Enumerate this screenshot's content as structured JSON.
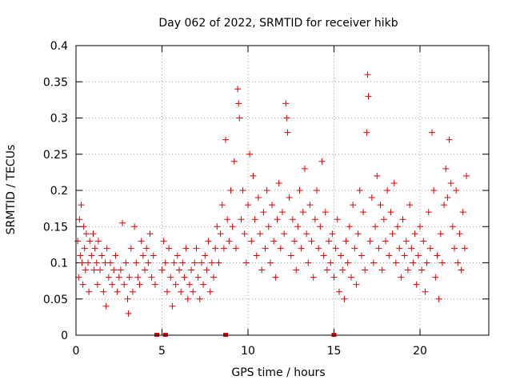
{
  "chart_data": {
    "type": "scatter",
    "title": "Day 062 of 2022, SRMTID for receiver hikb",
    "xlabel": "GPS time / hours",
    "ylabel": "SRMTID / TECUs",
    "xlim": [
      0,
      24
    ],
    "ylim": [
      0,
      0.4
    ],
    "xticks": [
      0,
      5,
      10,
      15,
      20
    ],
    "yticks": [
      0,
      0.05,
      0.1,
      0.15,
      0.2,
      0.25,
      0.3,
      0.35,
      0.4
    ],
    "xtick_labels": [
      "0",
      "5",
      "10",
      "15",
      "20"
    ],
    "ytick_labels": [
      "0",
      "0.05",
      "0.1",
      "0.15",
      "0.2",
      "0.25",
      "0.3",
      "0.35",
      "0.4"
    ],
    "grid": true,
    "marker": "+",
    "color": "#e00000",
    "series": [
      {
        "points": [
          [
            0.1,
            0.13
          ],
          [
            0.15,
            0.08
          ],
          [
            0.2,
            0.16
          ],
          [
            0.25,
            0.11
          ],
          [
            0.3,
            0.18
          ],
          [
            0.35,
            0.1
          ],
          [
            0.4,
            0.07
          ],
          [
            0.45,
            0.15
          ],
          [
            0.5,
            0.12
          ],
          [
            0.55,
            0.09
          ],
          [
            0.6,
            0.14
          ],
          [
            0.7,
            0.1
          ],
          [
            0.75,
            0.06
          ],
          [
            0.8,
            0.13
          ],
          [
            0.9,
            0.11
          ],
          [
            1.0,
            0.14
          ],
          [
            1.05,
            0.09
          ],
          [
            1.1,
            0.12
          ],
          [
            1.2,
            0.1
          ],
          [
            1.25,
            0.07
          ],
          [
            1.3,
            0.13
          ],
          [
            1.4,
            0.09
          ],
          [
            1.5,
            0.11
          ],
          [
            1.6,
            0.06
          ],
          [
            1.7,
            0.1
          ],
          [
            1.75,
            0.04
          ],
          [
            1.8,
            0.12
          ],
          [
            1.9,
            0.08
          ],
          [
            2.0,
            0.1
          ],
          [
            2.1,
            0.07
          ],
          [
            2.2,
            0.09
          ],
          [
            2.3,
            0.11
          ],
          [
            2.4,
            0.06
          ],
          [
            2.5,
            0.08
          ],
          [
            2.6,
            0.09
          ],
          [
            2.7,
            0.155
          ],
          [
            2.8,
            0.07
          ],
          [
            2.9,
            0.1
          ],
          [
            3.0,
            0.05
          ],
          [
            3.05,
            0.03
          ],
          [
            3.1,
            0.08
          ],
          [
            3.2,
            0.12
          ],
          [
            3.3,
            0.06
          ],
          [
            3.4,
            0.15
          ],
          [
            3.5,
            0.1
          ],
          [
            3.6,
            0.08
          ],
          [
            3.7,
            0.07
          ],
          [
            3.8,
            0.13
          ],
          [
            3.9,
            0.11
          ],
          [
            4.0,
            0.09
          ],
          [
            4.1,
            0.12
          ],
          [
            4.2,
            0.1
          ],
          [
            4.3,
            0.14
          ],
          [
            4.4,
            0.08
          ],
          [
            4.5,
            0.11
          ],
          [
            4.6,
            0.07
          ],
          [
            5.0,
            0.09
          ],
          [
            5.1,
            0.13
          ],
          [
            5.2,
            0.1
          ],
          [
            5.3,
            0.06
          ],
          [
            5.4,
            0.12
          ],
          [
            5.5,
            0.08
          ],
          [
            5.6,
            0.04
          ],
          [
            5.7,
            0.1
          ],
          [
            5.8,
            0.07
          ],
          [
            5.9,
            0.11
          ],
          [
            6.0,
            0.09
          ],
          [
            6.1,
            0.06
          ],
          [
            6.2,
            0.1
          ],
          [
            6.3,
            0.08
          ],
          [
            6.4,
            0.12
          ],
          [
            6.5,
            0.05
          ],
          [
            6.6,
            0.07
          ],
          [
            6.7,
            0.09
          ],
          [
            6.8,
            0.06
          ],
          [
            6.9,
            0.1
          ],
          [
            7.0,
            0.12
          ],
          [
            7.1,
            0.08
          ],
          [
            7.2,
            0.05
          ],
          [
            7.3,
            0.1
          ],
          [
            7.4,
            0.07
          ],
          [
            7.5,
            0.11
          ],
          [
            7.6,
            0.09
          ],
          [
            7.7,
            0.13
          ],
          [
            7.8,
            0.06
          ],
          [
            7.9,
            0.1
          ],
          [
            8.0,
            0.08
          ],
          [
            8.1,
            0.12
          ],
          [
            8.2,
            0.15
          ],
          [
            8.3,
            0.1
          ],
          [
            8.4,
            0.14
          ],
          [
            8.5,
            0.18
          ],
          [
            8.6,
            0.12
          ],
          [
            8.7,
            0.27
          ],
          [
            8.8,
            0.16
          ],
          [
            8.9,
            0.13
          ],
          [
            9.0,
            0.2
          ],
          [
            9.1,
            0.15
          ],
          [
            9.2,
            0.24
          ],
          [
            9.3,
            0.12
          ],
          [
            9.4,
            0.34
          ],
          [
            9.45,
            0.32
          ],
          [
            9.5,
            0.3
          ],
          [
            9.6,
            0.16
          ],
          [
            9.7,
            0.2
          ],
          [
            9.8,
            0.14
          ],
          [
            9.9,
            0.1
          ],
          [
            10.0,
            0.18
          ],
          [
            10.1,
            0.25
          ],
          [
            10.2,
            0.13
          ],
          [
            10.3,
            0.22
          ],
          [
            10.4,
            0.16
          ],
          [
            10.5,
            0.11
          ],
          [
            10.6,
            0.19
          ],
          [
            10.7,
            0.14
          ],
          [
            10.8,
            0.09
          ],
          [
            10.9,
            0.17
          ],
          [
            11.0,
            0.12
          ],
          [
            11.1,
            0.2
          ],
          [
            11.2,
            0.15
          ],
          [
            11.3,
            0.1
          ],
          [
            11.4,
            0.18
          ],
          [
            11.5,
            0.13
          ],
          [
            11.6,
            0.08
          ],
          [
            11.7,
            0.16
          ],
          [
            11.8,
            0.21
          ],
          [
            11.9,
            0.12
          ],
          [
            12.0,
            0.17
          ],
          [
            12.1,
            0.14
          ],
          [
            12.2,
            0.32
          ],
          [
            12.25,
            0.3
          ],
          [
            12.3,
            0.28
          ],
          [
            12.4,
            0.19
          ],
          [
            12.5,
            0.11
          ],
          [
            12.6,
            0.16
          ],
          [
            12.7,
            0.13
          ],
          [
            12.8,
            0.09
          ],
          [
            12.9,
            0.15
          ],
          [
            13.0,
            0.2
          ],
          [
            13.1,
            0.12
          ],
          [
            13.2,
            0.17
          ],
          [
            13.3,
            0.23
          ],
          [
            13.4,
            0.14
          ],
          [
            13.5,
            0.1
          ],
          [
            13.6,
            0.18
          ],
          [
            13.7,
            0.13
          ],
          [
            13.8,
            0.08
          ],
          [
            13.9,
            0.16
          ],
          [
            14.0,
            0.2
          ],
          [
            14.1,
            0.12
          ],
          [
            14.2,
            0.15
          ],
          [
            14.3,
            0.24
          ],
          [
            14.4,
            0.11
          ],
          [
            14.5,
            0.17
          ],
          [
            14.6,
            0.09
          ],
          [
            14.7,
            0.13
          ],
          [
            14.8,
            0.1
          ],
          [
            14.9,
            0.14
          ],
          [
            15.0,
            0.08
          ],
          [
            15.1,
            0.12
          ],
          [
            15.2,
            0.16
          ],
          [
            15.3,
            0.06
          ],
          [
            15.4,
            0.11
          ],
          [
            15.5,
            0.09
          ],
          [
            15.6,
            0.05
          ],
          [
            15.7,
            0.13
          ],
          [
            15.8,
            0.1
          ],
          [
            15.9,
            0.15
          ],
          [
            16.0,
            0.08
          ],
          [
            16.1,
            0.18
          ],
          [
            16.2,
            0.12
          ],
          [
            16.3,
            0.07
          ],
          [
            16.4,
            0.14
          ],
          [
            16.5,
            0.2
          ],
          [
            16.6,
            0.11
          ],
          [
            16.7,
            0.17
          ],
          [
            16.8,
            0.09
          ],
          [
            16.9,
            0.28
          ],
          [
            16.95,
            0.36
          ],
          [
            17.0,
            0.33
          ],
          [
            17.1,
            0.13
          ],
          [
            17.2,
            0.19
          ],
          [
            17.3,
            0.1
          ],
          [
            17.4,
            0.15
          ],
          [
            17.5,
            0.22
          ],
          [
            17.6,
            0.12
          ],
          [
            17.7,
            0.18
          ],
          [
            17.8,
            0.09
          ],
          [
            17.9,
            0.16
          ],
          [
            18.0,
            0.13
          ],
          [
            18.1,
            0.2
          ],
          [
            18.2,
            0.11
          ],
          [
            18.3,
            0.17
          ],
          [
            18.4,
            0.14
          ],
          [
            18.5,
            0.21
          ],
          [
            18.6,
            0.1
          ],
          [
            18.7,
            0.15
          ],
          [
            18.8,
            0.12
          ],
          [
            18.9,
            0.08
          ],
          [
            19.0,
            0.16
          ],
          [
            19.1,
            0.11
          ],
          [
            19.2,
            0.13
          ],
          [
            19.3,
            0.09
          ],
          [
            19.4,
            0.18
          ],
          [
            19.5,
            0.12
          ],
          [
            19.6,
            0.1
          ],
          [
            19.7,
            0.14
          ],
          [
            19.8,
            0.07
          ],
          [
            19.9,
            0.11
          ],
          [
            20.0,
            0.15
          ],
          [
            20.1,
            0.09
          ],
          [
            20.2,
            0.13
          ],
          [
            20.3,
            0.06
          ],
          [
            20.4,
            0.1
          ],
          [
            20.5,
            0.17
          ],
          [
            20.6,
            0.12
          ],
          [
            20.7,
            0.28
          ],
          [
            20.8,
            0.2
          ],
          [
            20.9,
            0.08
          ],
          [
            21.0,
            0.11
          ],
          [
            21.1,
            0.05
          ],
          [
            21.2,
            0.14
          ],
          [
            21.3,
            0.1
          ],
          [
            21.4,
            0.18
          ],
          [
            21.5,
            0.23
          ],
          [
            21.6,
            0.19
          ],
          [
            21.7,
            0.27
          ],
          [
            21.8,
            0.21
          ],
          [
            21.9,
            0.15
          ],
          [
            22.0,
            0.12
          ],
          [
            22.1,
            0.2
          ],
          [
            22.2,
            0.1
          ],
          [
            22.3,
            0.14
          ],
          [
            22.4,
            0.09
          ],
          [
            22.5,
            0.17
          ],
          [
            22.6,
            0.12
          ],
          [
            22.7,
            0.22
          ]
        ]
      }
    ],
    "zero_points": [
      4.7,
      5.2,
      8.7,
      15.0
    ]
  }
}
